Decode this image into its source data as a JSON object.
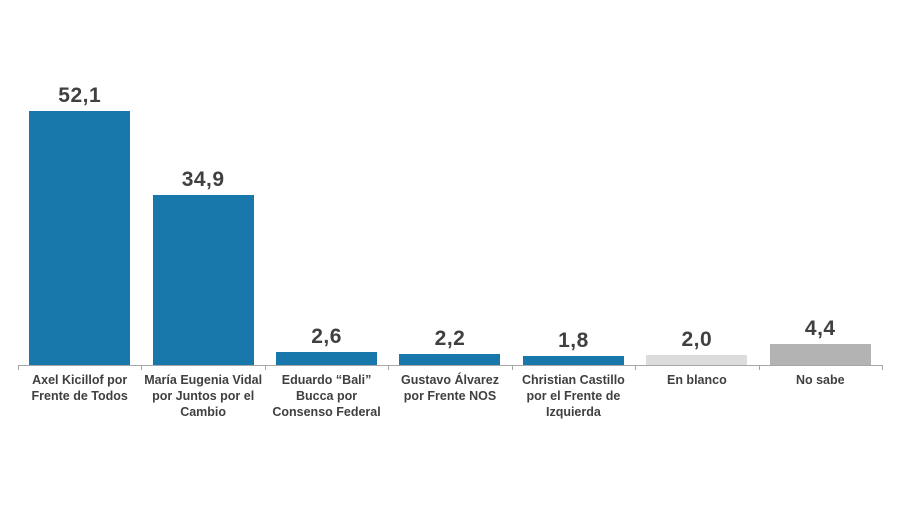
{
  "chart_data": {
    "type": "bar",
    "title": "",
    "xlabel": "",
    "ylabel": "",
    "categories": [
      "Axel Kicillof por Frente de Todos",
      "María Eugenia Vidal por Juntos por el Cambio",
      "Eduardo “Bali” Bucca por Consenso Federal",
      "Gustavo Álvarez por Frente NOS",
      "Christian Castillo por el Frente de Izquierda",
      "En blanco",
      "No sabe"
    ],
    "values": [
      52.1,
      34.9,
      2.6,
      2.2,
      1.8,
      2.0,
      4.4
    ],
    "value_labels": [
      "52,1",
      "34,9",
      "2,6",
      "2,2",
      "1,8",
      "2,0",
      "4,4"
    ],
    "bar_colors": [
      "#1878ab",
      "#1878ab",
      "#1878ab",
      "#1878ab",
      "#1878ab",
      "#dcdcdc",
      "#b3b3b3"
    ],
    "ylim": [
      0,
      56
    ],
    "grid": false,
    "legend": false,
    "decimal_style": "comma",
    "colors": {
      "bar_primary": "#1878ab",
      "bar_blank": "#dcdcdc",
      "bar_unknown": "#b3b3b3",
      "axis_line": "#a6a6a6",
      "text": "#404040",
      "background": "#ffffff"
    }
  }
}
